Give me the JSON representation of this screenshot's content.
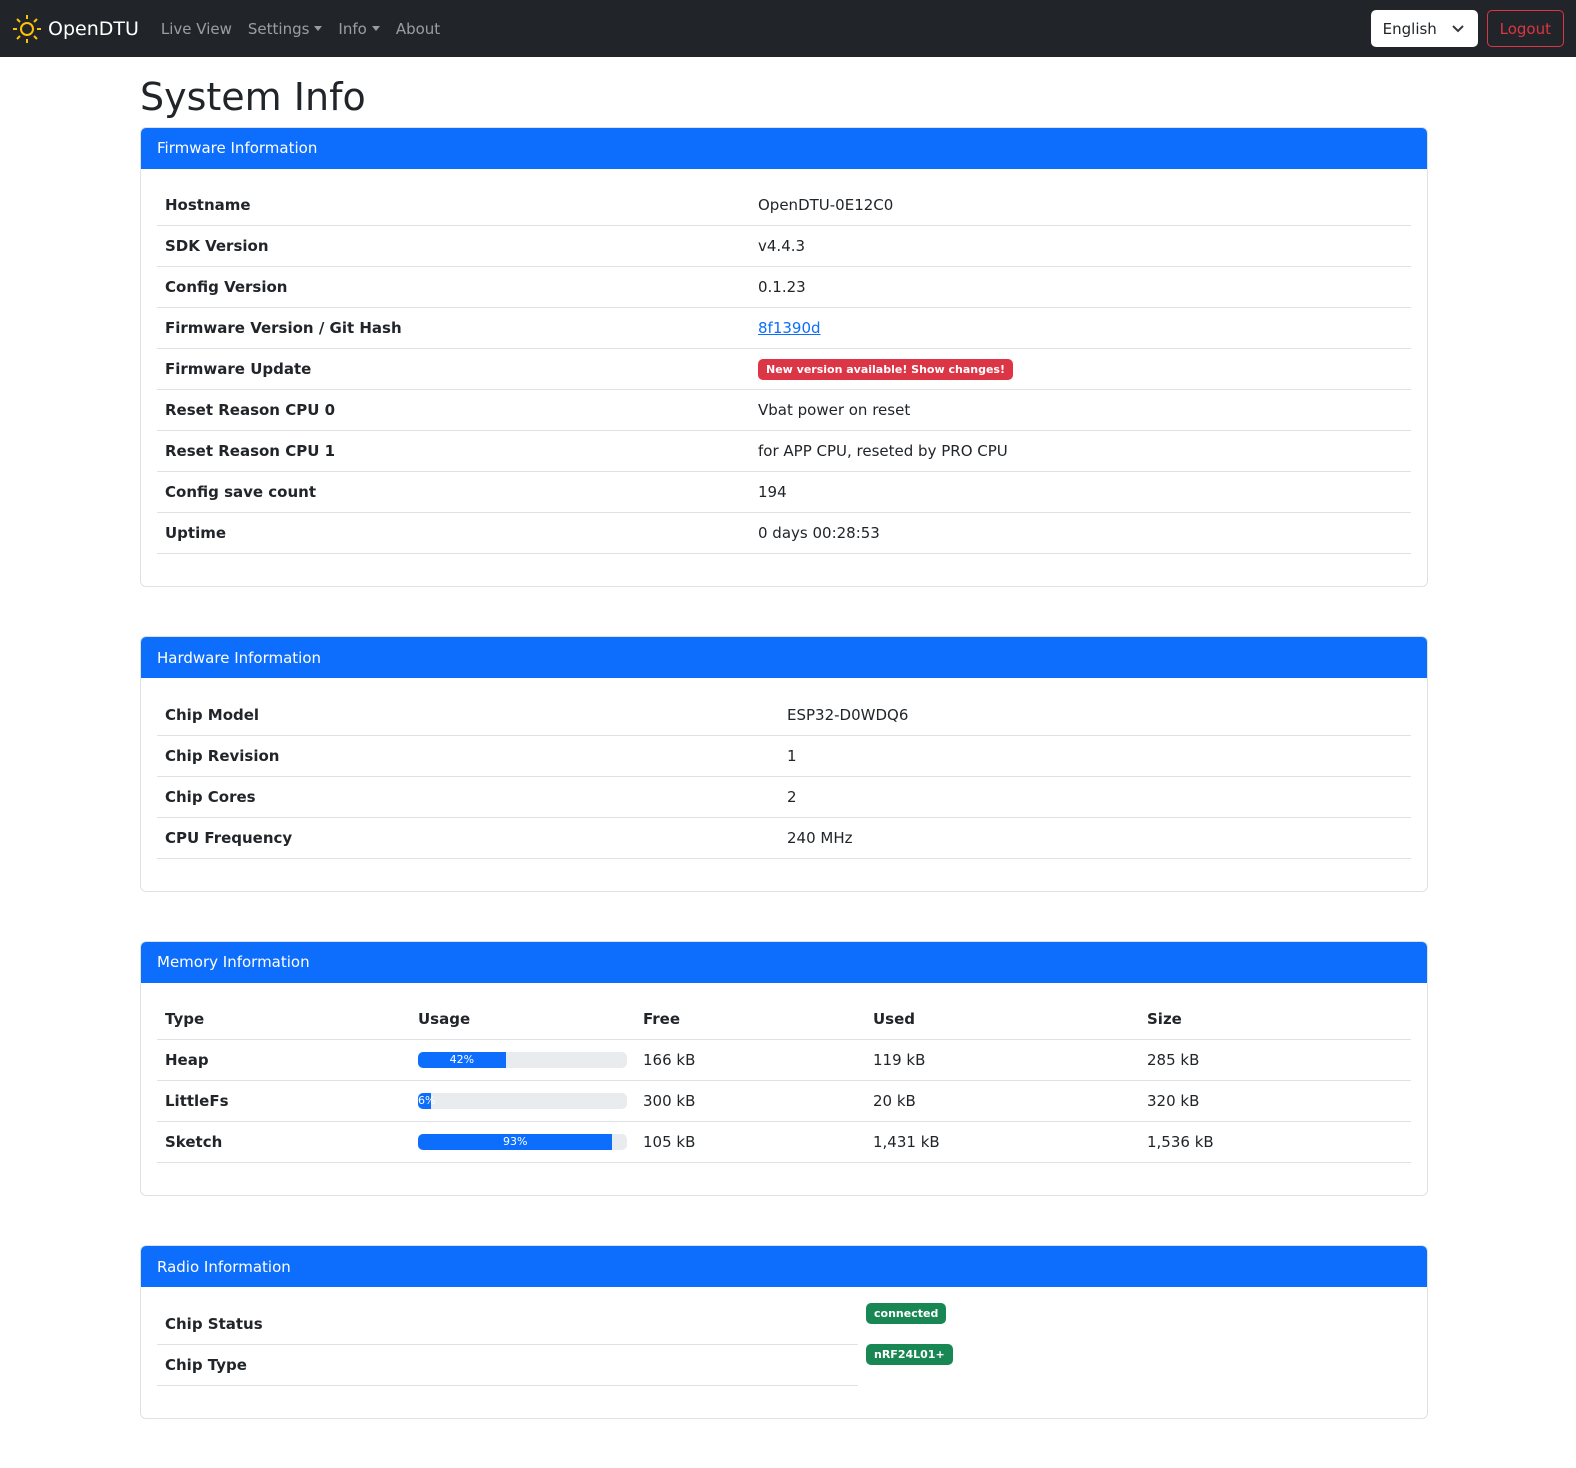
{
  "nav": {
    "brand": "OpenDTU",
    "links": [
      {
        "label": "Live View",
        "dropdown": false
      },
      {
        "label": "Settings",
        "dropdown": true
      },
      {
        "label": "Info",
        "dropdown": true
      },
      {
        "label": "About",
        "dropdown": false
      }
    ],
    "language": "English",
    "logout": "Logout"
  },
  "title": "System Info",
  "firmware": {
    "header": "Firmware Information",
    "rows": [
      {
        "label": "Hostname",
        "value": "OpenDTU-0E12C0"
      },
      {
        "label": "SDK Version",
        "value": "v4.4.3"
      },
      {
        "label": "Config Version",
        "value": "0.1.23"
      },
      {
        "label": "Firmware Version / Git Hash",
        "value": "8f1390d",
        "link": true
      },
      {
        "label": "Firmware Update",
        "value": "New version available! Show changes!",
        "badge": "#dc3545"
      },
      {
        "label": "Reset Reason CPU 0",
        "value": "Vbat power on reset"
      },
      {
        "label": "Reset Reason CPU 1",
        "value": "for APP CPU, reseted by PRO CPU"
      },
      {
        "label": "Config save count",
        "value": "194"
      },
      {
        "label": "Uptime",
        "value": "0 days 00:28:53"
      }
    ]
  },
  "hardware": {
    "header": "Hardware Information",
    "rows": [
      {
        "label": "Chip Model",
        "value": "ESP32-D0WDQ6"
      },
      {
        "label": "Chip Revision",
        "value": "1"
      },
      {
        "label": "Chip Cores",
        "value": "2"
      },
      {
        "label": "CPU Frequency",
        "value": "240 MHz"
      }
    ]
  },
  "memory": {
    "header": "Memory Information",
    "columns": [
      "Type",
      "Usage",
      "Free",
      "Used",
      "Size"
    ],
    "rows": [
      {
        "type": "Heap",
        "usage": 42,
        "usage_label": "42%",
        "free": "166 kB",
        "used": "119 kB",
        "size": "285 kB"
      },
      {
        "type": "LittleFs",
        "usage": 6,
        "usage_label": "6%",
        "free": "300 kB",
        "used": "20 kB",
        "size": "320 kB"
      },
      {
        "type": "Sketch",
        "usage": 93,
        "usage_label": "93%",
        "free": "105 kB",
        "used": "1,431 kB",
        "size": "1,536 kB"
      }
    ]
  },
  "radio": {
    "header": "Radio Information",
    "rows": [
      {
        "label": "Chip Status",
        "value": "connected",
        "badge": "#198754"
      },
      {
        "label": "Chip Type",
        "value": "nRF24L01+",
        "badge": "#198754"
      }
    ]
  }
}
